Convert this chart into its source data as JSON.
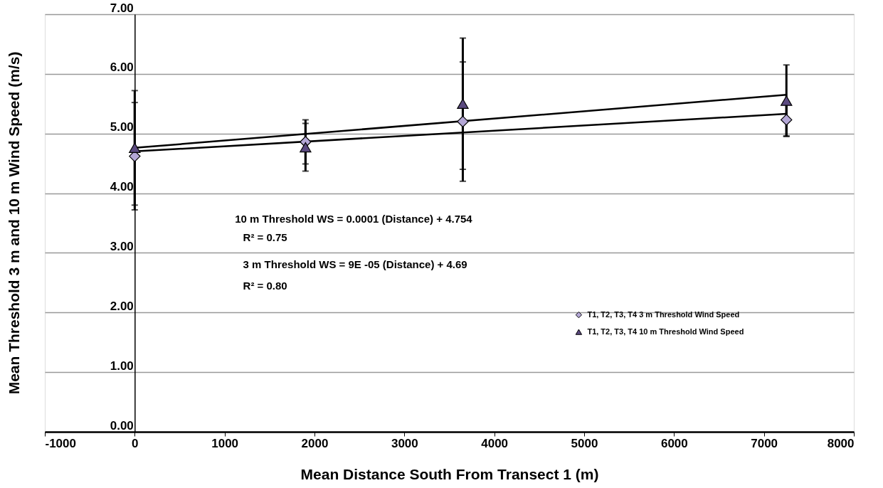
{
  "chart_data": {
    "type": "scatter",
    "xlabel": "Mean Distance South From Transect 1 (m)",
    "ylabel": "Mean Threshold 3 m  and 10 m Wind Speed (m/s)",
    "xlim": [
      -1000,
      8000
    ],
    "xticks": [
      -1000,
      0,
      1000,
      2000,
      3000,
      4000,
      5000,
      6000,
      7000,
      8000
    ],
    "ylim": [
      0,
      7
    ],
    "yticks": [
      {
        "value": 0,
        "label": "0.00"
      },
      {
        "value": 1,
        "label": "1.00"
      },
      {
        "value": 2,
        "label": "2.00"
      },
      {
        "value": 3,
        "label": "3.00"
      },
      {
        "value": 4,
        "label": "4.00"
      },
      {
        "value": 5,
        "label": "5.00"
      },
      {
        "value": 6,
        "label": "6.00"
      },
      {
        "value": 7,
        "label": "7.00"
      }
    ],
    "grid": "y",
    "legend": "right",
    "series": [
      {
        "name": "T1, T2, T3, T4 3 m Threshold Wind Speed",
        "type": "scatter",
        "marker": "diamond",
        "color": "#b4a7d6",
        "x": [
          0,
          1900,
          3650,
          7250
        ],
        "values": [
          4.62,
          4.86,
          5.2,
          5.23
        ],
        "errors": [
          0.9,
          0.37,
          1.0,
          0.27
        ]
      },
      {
        "name": "T1, T2, T3, T4 10 m Threshold Wind Speed",
        "type": "scatter",
        "marker": "triangle",
        "color": "#5b4a80",
        "x": [
          0,
          1900,
          3650,
          7250
        ],
        "values": [
          4.76,
          4.77,
          5.5,
          5.55
        ],
        "errors": [
          0.96,
          0.4,
          1.1,
          0.6
        ]
      },
      {
        "type": "line",
        "color": "#000000",
        "x": [
          0,
          7250
        ],
        "values": [
          4.76,
          5.65
        ]
      },
      {
        "type": "line",
        "color": "#000000",
        "x": [
          0,
          7250
        ],
        "values": [
          4.7,
          5.33
        ]
      }
    ],
    "annotations": [
      "10 m Threshold WS = 0.0001 (Distance) + 4.754",
      "R² = 0.75",
      "3 m Threshold WS = 9E -05 (Distance) + 4.69",
      "R² = 0.80"
    ]
  }
}
